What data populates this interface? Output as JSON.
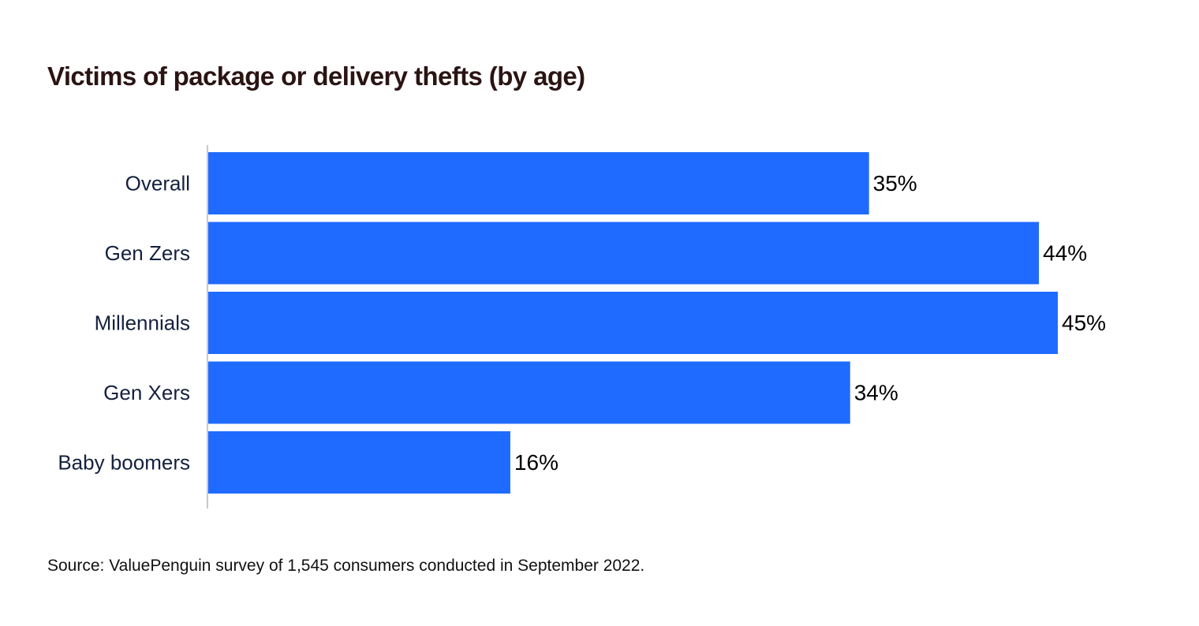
{
  "chart_data": {
    "type": "bar",
    "orientation": "horizontal",
    "title": "Victims of package or delivery thefts (by age)",
    "categories": [
      "Overall",
      "Gen Zers",
      "Millennials",
      "Gen Xers",
      "Baby boomers"
    ],
    "values": [
      35,
      44,
      45,
      34,
      16
    ],
    "value_labels": [
      "35%",
      "44%",
      "45%",
      "34%",
      "16%"
    ],
    "unit": "%",
    "xlim": [
      0,
      45
    ],
    "grid": false,
    "legend": "none",
    "colors": {
      "bar": "#1f6bff",
      "axis": "#c8c8c8",
      "category_label": "#14213d",
      "value_label": "#000000",
      "title": "#2b1414"
    }
  },
  "footer": {
    "source": "Source: ValuePenguin survey of 1,545 consumers conducted in September 2022."
  }
}
